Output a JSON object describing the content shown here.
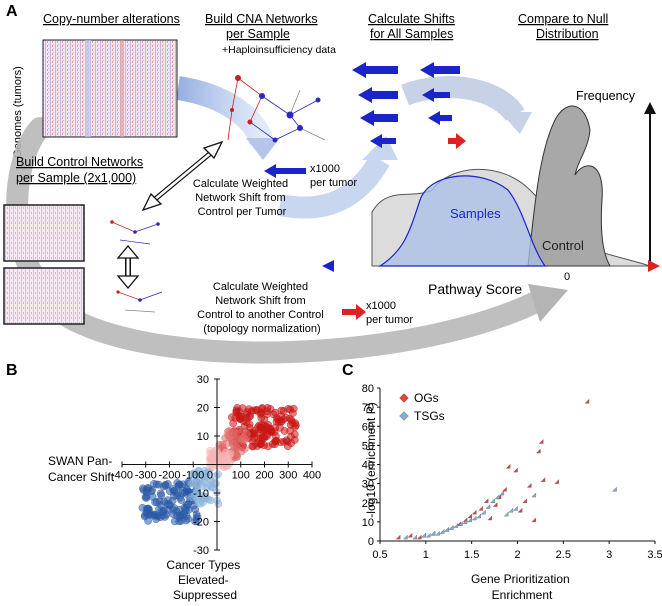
{
  "panel_a": {
    "letter": "A",
    "headers": {
      "cna": "Copy-number alterations",
      "build_cna_1": "Build CNA Networks",
      "build_cna_2": "per Sample",
      "calc_shifts_1": "Calculate Shifts",
      "calc_shifts_2": "for All Samples",
      "compare_1": "Compare to Null",
      "compare_2": "Distribution"
    },
    "haplo": "+Haploinsufficiency data",
    "genomes_label": "Genomes (tumors)",
    "control_header_1": "Build Control Networks",
    "control_header_2": "per Sample (2x1,000)",
    "weighted_1": [
      "Calculate Weighted",
      "Network Shift from",
      "Control per Tumor"
    ],
    "x1000_a": [
      "x1000",
      "per tumor"
    ],
    "weighted_2": [
      "Calculate Weighted",
      "Network Shift from",
      "Control to another Control",
      "(topology normalization)"
    ],
    "x1000_b": [
      "x1000",
      "per tumor"
    ],
    "frequency": "Frequency",
    "samples": "Samples",
    "control": "Control",
    "zero": "0",
    "pathway_score": "Pathway Score"
  },
  "panel_b": {
    "letter": "B",
    "left_label": [
      "SWAN Pan-",
      "Cancer Shift"
    ],
    "bottom_label": [
      "Cancer Types",
      "Elevated-",
      "Suppressed"
    ]
  },
  "panel_c": {
    "letter": "C",
    "ylabel": "-log10 (enrichment P)",
    "xlabel": [
      "Gene Prioritization",
      "Enrichment"
    ]
  },
  "colors": {
    "ogs": "#e0443a",
    "tsgs": "#7fb0d8",
    "blue_arrow": "#1a24c8",
    "red_arrow": "#e02020"
  },
  "chart_data": [
    {
      "id": "panel-b",
      "type": "scatter",
      "x_ticks": [
        "-400",
        "-300",
        "-200",
        "-100",
        "0",
        "100",
        "200",
        "300",
        "400"
      ],
      "y_ticks": [
        "30",
        "20",
        "10",
        "0",
        "-10",
        "-20",
        "-30"
      ],
      "xlim": [
        -400,
        400
      ],
      "ylim": [
        -30,
        30
      ],
      "clusters": [
        {
          "color": "#c81414",
          "x_range": [
            60,
            340
          ],
          "y_range": [
            6,
            20
          ],
          "count": 150
        },
        {
          "color": "#e06a6a",
          "x_range": [
            10,
            130
          ],
          "y_range": [
            2,
            12
          ],
          "count": 50
        },
        {
          "color": "#f5b5b5",
          "x_range": [
            -30,
            60
          ],
          "y_range": [
            -1,
            5
          ],
          "count": 40
        },
        {
          "color": "#2a5aa5",
          "x_range": [
            -320,
            -80
          ],
          "y_range": [
            -20,
            -6
          ],
          "count": 120
        },
        {
          "color": "#8ab4dc",
          "x_range": [
            -110,
            10
          ],
          "y_range": [
            -14,
            -2
          ],
          "count": 50
        }
      ]
    },
    {
      "id": "panel-c",
      "type": "scatter",
      "x_ticks": [
        "0.5",
        "1",
        "1.5",
        "2",
        "2.5",
        "3",
        "3.5"
      ],
      "y_ticks": [
        "0",
        "10",
        "20",
        "30",
        "40",
        "50",
        "60",
        "70",
        "80"
      ],
      "xlim": [
        0.5,
        3.5
      ],
      "ylim": [
        0,
        80
      ],
      "series": [
        {
          "name": "OGs",
          "marker": "diamond",
          "color": "#e0443a",
          "x": [
            0.72,
            0.85,
            0.95,
            1.0,
            1.1,
            1.2,
            1.25,
            1.3,
            1.38,
            1.45,
            1.5,
            1.55,
            1.62,
            1.68,
            1.72,
            1.78,
            1.82,
            1.88,
            1.92,
            2.0,
            2.05,
            2.1,
            2.15,
            2.2,
            2.25,
            2.28,
            2.3,
            2.45,
            2.78
          ],
          "y": [
            1,
            2,
            1,
            2,
            3,
            4,
            5,
            6,
            8,
            10,
            12,
            14,
            16,
            20,
            11,
            18,
            22,
            26,
            38,
            36,
            15,
            20,
            28,
            10,
            46,
            51,
            31,
            30,
            72
          ]
        },
        {
          "name": "TSGs",
          "marker": "diamond",
          "color": "#7fb0d8",
          "x": [
            0.8,
            0.9,
            1.0,
            1.05,
            1.1,
            1.15,
            1.2,
            1.25,
            1.3,
            1.35,
            1.4,
            1.45,
            1.5,
            1.55,
            1.6,
            1.65,
            1.7,
            1.75,
            1.8,
            1.85,
            1.9,
            1.95,
            2.0,
            2.2,
            3.08
          ],
          "y": [
            1,
            1,
            2,
            2,
            3,
            3,
            4,
            5,
            6,
            7,
            8,
            9,
            10,
            11,
            12,
            14,
            17,
            20,
            22,
            24,
            13,
            15,
            16,
            23,
            26
          ]
        }
      ]
    }
  ]
}
